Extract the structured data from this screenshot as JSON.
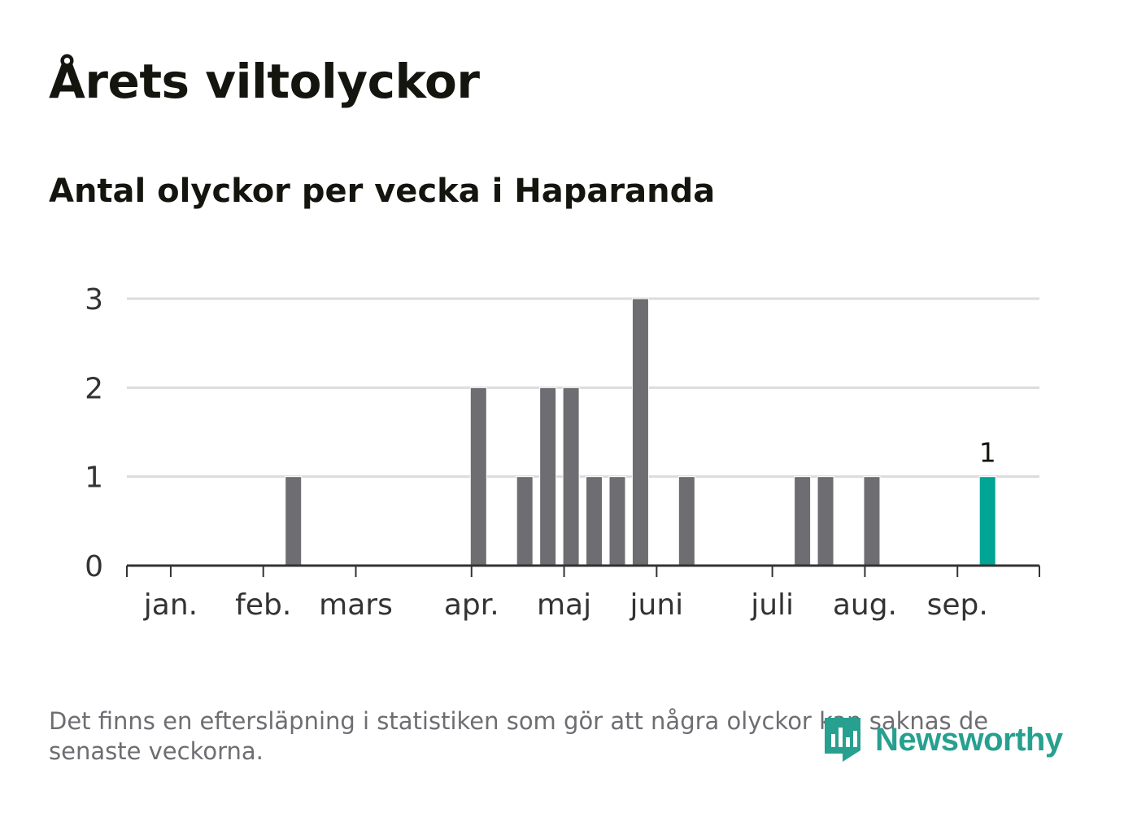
{
  "header": {
    "title": "Årets viltolyckor",
    "subtitle": "Antal olyckor per vecka i Haparanda"
  },
  "footer": {
    "note": "Det finns en eftersläpning i statistiken som gör att några olyckor kan saknas de senaste veckorna.",
    "brand": "Newsworthy",
    "brand_icon": "newsworthy-logo-icon"
  },
  "colors": {
    "bar": "#6e6d72",
    "highlight": "#00a596",
    "grid": "#dcdcdc",
    "axis": "#333333",
    "brand": "#27a08f"
  },
  "chart_data": {
    "type": "bar",
    "title": "Årets viltolyckor",
    "subtitle": "Antal olyckor per vecka i Haparanda",
    "xlabel": "",
    "ylabel": "",
    "ylim": [
      0,
      3
    ],
    "yticks": [
      0,
      1,
      2,
      3
    ],
    "grid": true,
    "x_unit": "week",
    "month_ticks": [
      {
        "label": "jan.",
        "week": 1.7
      },
      {
        "label": "feb.",
        "week": 5.7
      },
      {
        "label": "mars",
        "week": 9.7
      },
      {
        "label": "apr.",
        "week": 14.7
      },
      {
        "label": "maj",
        "week": 18.7
      },
      {
        "label": "juni",
        "week": 22.7
      },
      {
        "label": "juli",
        "week": 27.7
      },
      {
        "label": "aug.",
        "week": 31.7
      },
      {
        "label": "sep.",
        "week": 35.7
      }
    ],
    "weeks": [
      1,
      2,
      3,
      4,
      5,
      6,
      7,
      8,
      9,
      10,
      11,
      12,
      13,
      14,
      15,
      16,
      17,
      18,
      19,
      20,
      21,
      22,
      23,
      24,
      25,
      26,
      27,
      28,
      29,
      30,
      31,
      32,
      33,
      34,
      35,
      36,
      37
    ],
    "values": [
      0,
      0,
      0,
      0,
      0,
      0,
      1,
      0,
      0,
      0,
      0,
      0,
      0,
      0,
      2,
      0,
      1,
      2,
      2,
      1,
      1,
      3,
      0,
      1,
      0,
      0,
      0,
      0,
      1,
      1,
      0,
      1,
      0,
      0,
      0,
      0,
      1
    ],
    "highlight_index": 36,
    "highlight_label": "1"
  }
}
